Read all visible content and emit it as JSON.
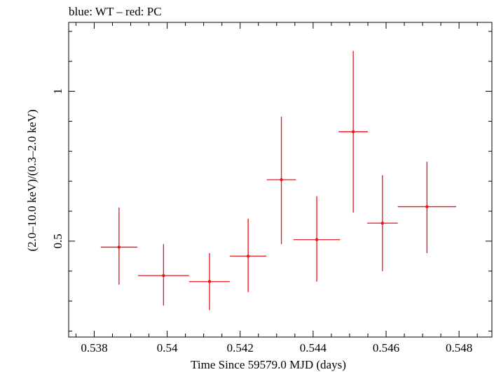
{
  "chart_data": {
    "type": "scatter",
    "title": "blue: WT – red: PC",
    "xlabel": "Time Since 59579.0 MJD (days)",
    "ylabel": "(2.0–10.0 keV)/(0.3–2.0 keV)",
    "xlim": [
      0.5373,
      0.5489
    ],
    "ylim": [
      0.18,
      1.23
    ],
    "x_ticks": [
      {
        "value": 0.538,
        "label": "0.538"
      },
      {
        "value": 0.54,
        "label": "0.54"
      },
      {
        "value": 0.542,
        "label": "0.542"
      },
      {
        "value": 0.544,
        "label": "0.544"
      },
      {
        "value": 0.546,
        "label": "0.546"
      },
      {
        "value": 0.548,
        "label": "0.548"
      }
    ],
    "y_ticks": [
      {
        "value": 0.5,
        "label": "0.5"
      },
      {
        "value": 1.0,
        "label": "1"
      }
    ],
    "grid": false,
    "series": [
      {
        "color": "#e8141c",
        "points": [
          {
            "x": 0.53868,
            "xerr": 0.0005,
            "y": 0.48,
            "ylo": 0.355,
            "yhi": 0.612
          },
          {
            "x": 0.5399,
            "xerr": 0.0007,
            "y": 0.385,
            "ylo": 0.285,
            "yhi": 0.49
          },
          {
            "x": 0.54116,
            "xerr": 0.00056,
            "y": 0.365,
            "ylo": 0.27,
            "yhi": 0.46
          },
          {
            "x": 0.54222,
            "xerr": 0.0005,
            "y": 0.45,
            "ylo": 0.33,
            "yhi": 0.575
          },
          {
            "x": 0.54313,
            "xerr": 0.0004,
            "y": 0.705,
            "ylo": 0.49,
            "yhi": 0.915
          },
          {
            "x": 0.5441,
            "xerr": 0.00064,
            "y": 0.505,
            "ylo": 0.365,
            "yhi": 0.65
          },
          {
            "x": 0.5451,
            "xerr": 0.0004,
            "y": 0.865,
            "ylo": 0.595,
            "yhi": 1.135
          },
          {
            "x": 0.5459,
            "xerr": 0.00042,
            "y": 0.56,
            "ylo": 0.4,
            "yhi": 0.72
          },
          {
            "x": 0.54712,
            "xerr": 0.0008,
            "y": 0.615,
            "ylo": 0.46,
            "yhi": 0.765
          }
        ]
      }
    ]
  }
}
